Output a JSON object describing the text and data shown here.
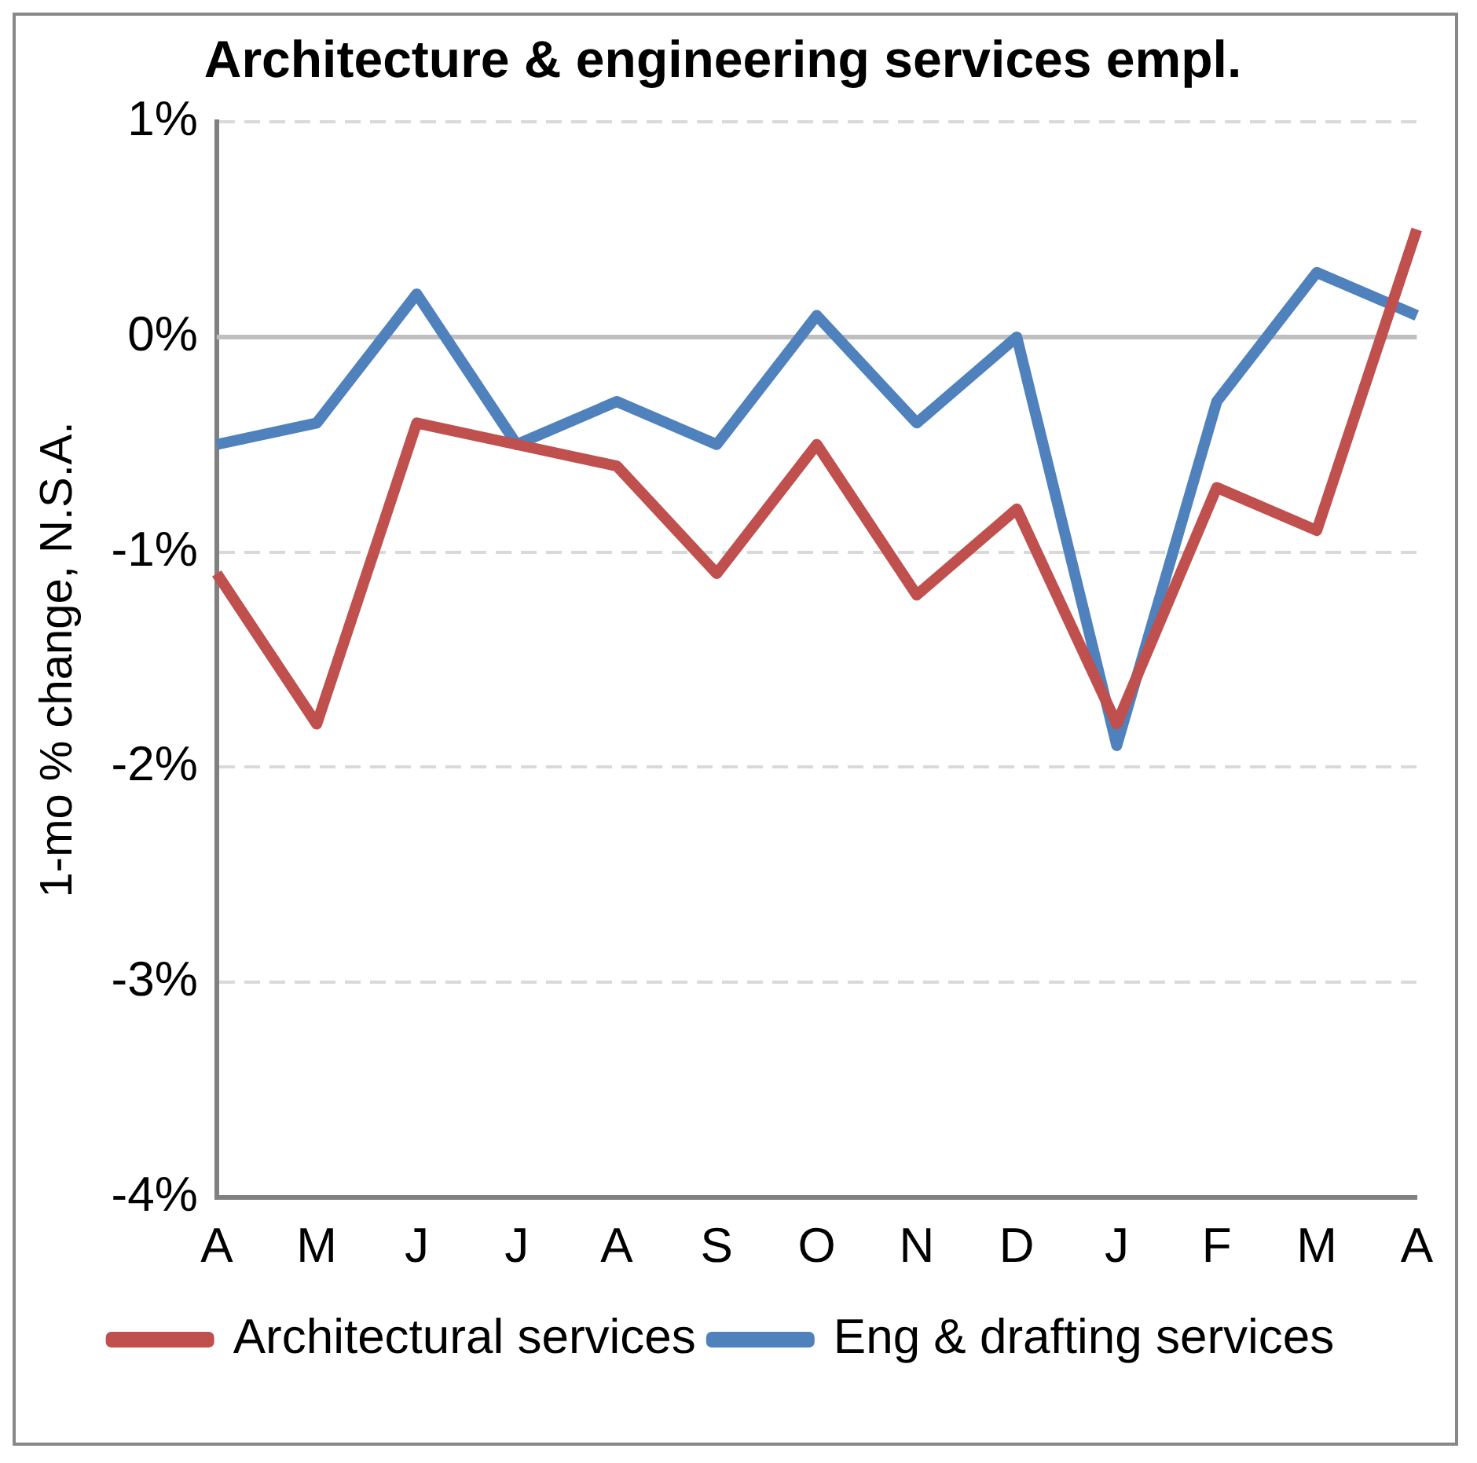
{
  "chart_data": {
    "type": "line",
    "title": "Architecture & engineering services empl.",
    "ylabel": "1-mo % change, N.S.A.",
    "categories": [
      "A",
      "M",
      "J",
      "J",
      "A",
      "S",
      "O",
      "N",
      "D",
      "J",
      "F",
      "M",
      "A"
    ],
    "series": [
      {
        "name": "Architectural services",
        "color": "#c0504d",
        "values": [
          -1.1,
          -1.8,
          -0.4,
          -0.5,
          -0.6,
          -1.1,
          -0.5,
          -1.2,
          -0.8,
          -1.8,
          -0.7,
          -0.9,
          0.5
        ]
      },
      {
        "name": "Eng & drafting services",
        "color": "#4f81bd",
        "values": [
          -0.5,
          -0.4,
          0.2,
          -0.5,
          -0.3,
          -0.5,
          0.1,
          -0.4,
          0,
          -1.9,
          -0.3,
          0.3,
          0.1
        ]
      }
    ],
    "ylim": [
      -4,
      1
    ],
    "yticks": [
      {
        "value": 1,
        "label": "1%"
      },
      {
        "value": 0,
        "label": "0%"
      },
      {
        "value": -1,
        "label": "-1%"
      },
      {
        "value": -2,
        "label": "-2%"
      },
      {
        "value": -3,
        "label": "-3%"
      },
      {
        "value": -4,
        "label": "-4%"
      }
    ],
    "grid": "y",
    "legend": "bottom",
    "marker": "none",
    "line_style": "solid",
    "ref_lines": [
      {
        "axis": "y",
        "value": 0,
        "color": "#bfbfbf"
      }
    ]
  }
}
